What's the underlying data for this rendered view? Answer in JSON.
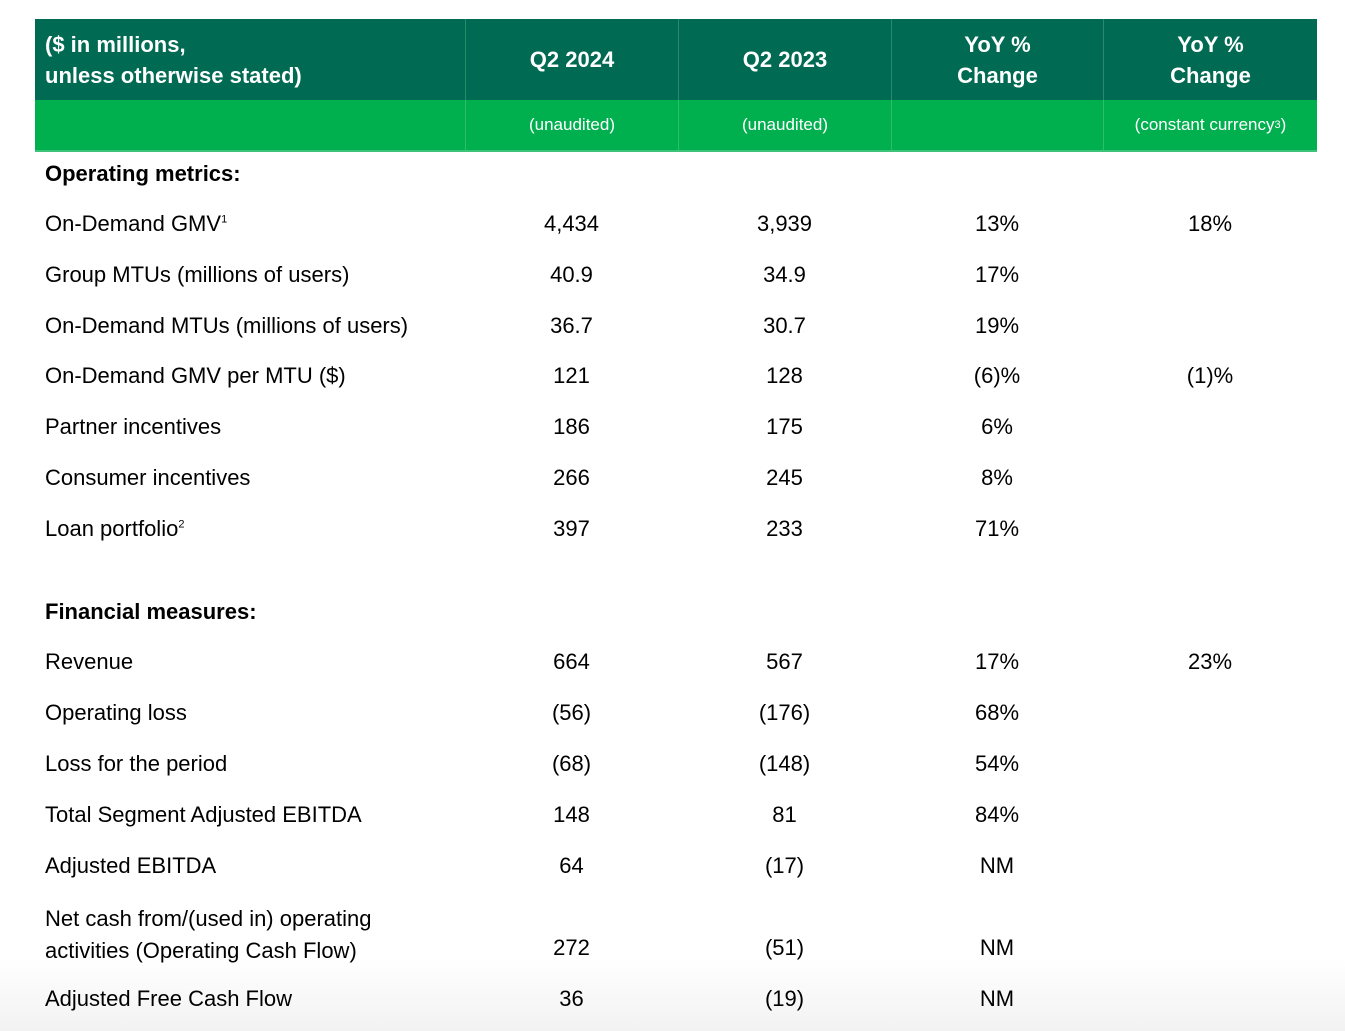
{
  "header": {
    "label_line1": "($ in millions,",
    "label_line2": "unless otherwise stated)",
    "col1": "Q2 2024",
    "col2": "Q2 2023",
    "col3_line1": "YoY %",
    "col3_line2": "Change",
    "col4_line1": "YoY %",
    "col4_line2": "Change"
  },
  "subheader": {
    "col1": "(unaudited)",
    "col2": "(unaudited)",
    "col3": "",
    "col4_text": "(constant currency",
    "col4_sup": "3",
    "col4_close": ")"
  },
  "colors": {
    "header_bg": "#006a52",
    "subheader_bg": "#00b04f"
  },
  "sections": {
    "operating": "Operating metrics:",
    "financial": "Financial measures:"
  },
  "operating_rows": [
    {
      "label": "On-Demand GMV",
      "sup": "1",
      "q2_2024": "4,434",
      "q2_2023": "3,939",
      "yoy": "13%",
      "yoy_cc": "18%"
    },
    {
      "label": "Group MTUs (millions of users)",
      "sup": "",
      "q2_2024": "40.9",
      "q2_2023": "34.9",
      "yoy": "17%",
      "yoy_cc": ""
    },
    {
      "label": "On-Demand MTUs (millions of users)",
      "sup": "",
      "q2_2024": "36.7",
      "q2_2023": "30.7",
      "yoy": "19%",
      "yoy_cc": ""
    },
    {
      "label": "On-Demand GMV per MTU ($)",
      "sup": "",
      "q2_2024": "121",
      "q2_2023": "128",
      "yoy": "(6)%",
      "yoy_cc": "(1)%"
    },
    {
      "label": "Partner incentives",
      "sup": "",
      "q2_2024": "186",
      "q2_2023": "175",
      "yoy": "6%",
      "yoy_cc": ""
    },
    {
      "label": "Consumer incentives",
      "sup": "",
      "q2_2024": "266",
      "q2_2023": "245",
      "yoy": "8%",
      "yoy_cc": ""
    },
    {
      "label": "Loan portfolio",
      "sup": "2",
      "q2_2024": "397",
      "q2_2023": "233",
      "yoy": "71%",
      "yoy_cc": ""
    }
  ],
  "financial_rows": [
    {
      "label": "Revenue",
      "q2_2024": "664",
      "q2_2023": "567",
      "yoy": "17%",
      "yoy_cc": "23%"
    },
    {
      "label": "Operating loss",
      "q2_2024": "(56)",
      "q2_2023": "(176)",
      "yoy": "68%",
      "yoy_cc": ""
    },
    {
      "label": "Loss for the period",
      "q2_2024": "(68)",
      "q2_2023": "(148)",
      "yoy": "54%",
      "yoy_cc": ""
    },
    {
      "label": "Total Segment Adjusted EBITDA",
      "q2_2024": "148",
      "q2_2023": "81",
      "yoy": "84%",
      "yoy_cc": ""
    },
    {
      "label": "Adjusted EBITDA",
      "q2_2024": "64",
      "q2_2023": "(17)",
      "yoy": "NM",
      "yoy_cc": ""
    },
    {
      "label_line1": "Net cash from/(used in) operating",
      "label_line2": "activities (Operating Cash Flow)",
      "q2_2024": "272",
      "q2_2023": "(51)",
      "yoy": "NM",
      "yoy_cc": ""
    },
    {
      "label": "Adjusted Free Cash Flow",
      "q2_2024": "36",
      "q2_2023": "(19)",
      "yoy": "NM",
      "yoy_cc": ""
    }
  ]
}
